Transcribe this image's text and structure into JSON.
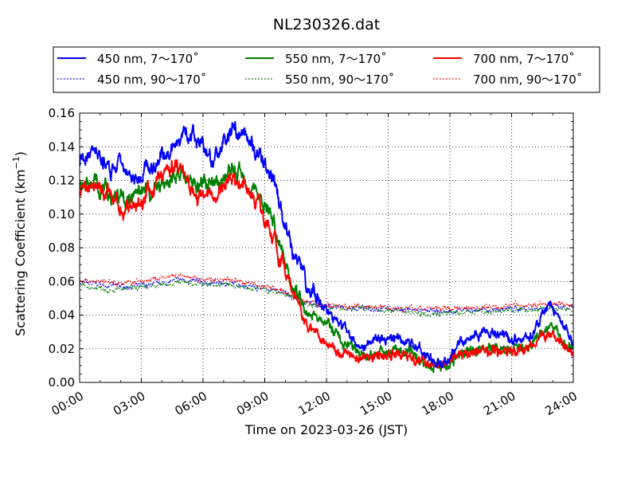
{
  "chart_data": {
    "type": "line",
    "title": "NL230326.dat",
    "xlabel": "Time on 2023-03-26 (JST)",
    "ylabel_main": "Scattering Coefficient (km",
    "ylabel_exp": "−1",
    "ylabel_close": ")",
    "x_unit": "hours",
    "xlim": [
      0,
      24
    ],
    "ylim": [
      0,
      0.16
    ],
    "x_ticks": [
      {
        "value": 0,
        "label": "00:00"
      },
      {
        "value": 3,
        "label": "03:00"
      },
      {
        "value": 6,
        "label": "06:00"
      },
      {
        "value": 9,
        "label": "09:00"
      },
      {
        "value": 12,
        "label": "12:00"
      },
      {
        "value": 15,
        "label": "15:00"
      },
      {
        "value": 18,
        "label": "18:00"
      },
      {
        "value": 21,
        "label": "21:00"
      },
      {
        "value": 24,
        "label": "24:00"
      }
    ],
    "y_ticks": [
      {
        "value": 0,
        "label": "0.00"
      },
      {
        "value": 0.02,
        "label": "0.02"
      },
      {
        "value": 0.04,
        "label": "0.04"
      },
      {
        "value": 0.06,
        "label": "0.06"
      },
      {
        "value": 0.08,
        "label": "0.08"
      },
      {
        "value": 0.1,
        "label": "0.10"
      },
      {
        "value": 0.12,
        "label": "0.12"
      },
      {
        "value": 0.14,
        "label": "0.14"
      },
      {
        "value": 0.16,
        "label": "0.16"
      }
    ],
    "grid": true,
    "legend_position": "top, above plot",
    "series": [
      {
        "name": "450 nm, 7～170˚",
        "color": "#0000ff",
        "style": "solid",
        "x": [
          0,
          0.5,
          1,
          1.5,
          2,
          2.5,
          3,
          3.5,
          4,
          4.5,
          5,
          5.5,
          6,
          6.5,
          7,
          7.5,
          8,
          8.5,
          9,
          9.5,
          10,
          10.5,
          11,
          11.5,
          12,
          12.5,
          13,
          13.5,
          14,
          14.5,
          15,
          15.5,
          16,
          16.5,
          17,
          17.5,
          18,
          18.5,
          19,
          19.5,
          20,
          20.5,
          21,
          21.5,
          22,
          22.5,
          23,
          23.5,
          24
        ],
        "y": [
          0.13,
          0.137,
          0.133,
          0.128,
          0.13,
          0.125,
          0.125,
          0.128,
          0.133,
          0.14,
          0.148,
          0.145,
          0.14,
          0.132,
          0.14,
          0.15,
          0.148,
          0.138,
          0.128,
          0.115,
          0.09,
          0.075,
          0.06,
          0.052,
          0.042,
          0.035,
          0.03,
          0.024,
          0.022,
          0.025,
          0.025,
          0.026,
          0.025,
          0.02,
          0.014,
          0.014,
          0.015,
          0.024,
          0.028,
          0.03,
          0.028,
          0.027,
          0.026,
          0.025,
          0.028,
          0.04,
          0.046,
          0.032,
          0.025
        ]
      },
      {
        "name": "450 nm, 90～170˚",
        "color": "#0000ff",
        "style": "dotted",
        "x": [
          0,
          1,
          2,
          3,
          4,
          5,
          6,
          7,
          8,
          9,
          10,
          10.5,
          11,
          11.5,
          12,
          13,
          14,
          15,
          16,
          17,
          18,
          19,
          20,
          21,
          22,
          23,
          24
        ],
        "y": [
          0.059,
          0.058,
          0.057,
          0.057,
          0.059,
          0.061,
          0.059,
          0.059,
          0.058,
          0.056,
          0.053,
          0.05,
          0.047,
          0.046,
          0.045,
          0.044,
          0.044,
          0.044,
          0.043,
          0.042,
          0.042,
          0.043,
          0.043,
          0.044,
          0.044,
          0.045,
          0.044
        ]
      },
      {
        "name": "550 nm, 7～170˚",
        "color": "#008000",
        "style": "solid",
        "x": [
          0,
          0.5,
          1,
          1.5,
          2,
          2.5,
          3,
          3.5,
          4,
          4.5,
          5,
          5.5,
          6,
          6.5,
          7,
          7.5,
          8,
          8.5,
          9,
          9.5,
          10,
          10.5,
          11,
          11.5,
          12,
          12.5,
          13,
          13.5,
          14,
          14.5,
          15,
          15.5,
          16,
          16.5,
          17,
          17.5,
          18,
          18.5,
          19,
          19.5,
          20,
          20.5,
          21,
          21.5,
          22,
          22.5,
          23,
          23.5,
          24
        ],
        "y": [
          0.115,
          0.12,
          0.117,
          0.112,
          0.11,
          0.108,
          0.11,
          0.112,
          0.118,
          0.122,
          0.125,
          0.12,
          0.117,
          0.115,
          0.122,
          0.126,
          0.123,
          0.115,
          0.106,
          0.093,
          0.07,
          0.056,
          0.042,
          0.038,
          0.036,
          0.028,
          0.022,
          0.018,
          0.016,
          0.017,
          0.018,
          0.019,
          0.017,
          0.013,
          0.01,
          0.01,
          0.011,
          0.016,
          0.019,
          0.021,
          0.02,
          0.02,
          0.02,
          0.021,
          0.023,
          0.03,
          0.033,
          0.024,
          0.02
        ]
      },
      {
        "name": "550 nm, 90～170˚",
        "color": "#008000",
        "style": "dotted",
        "x": [
          0,
          1,
          2,
          3,
          4,
          5,
          6,
          7,
          8,
          9,
          10,
          10.5,
          11,
          11.5,
          12,
          13,
          14,
          15,
          16,
          17,
          18,
          19,
          20,
          21,
          22,
          23,
          24
        ],
        "y": [
          0.057,
          0.056,
          0.055,
          0.056,
          0.058,
          0.06,
          0.058,
          0.058,
          0.057,
          0.055,
          0.052,
          0.05,
          0.047,
          0.046,
          0.045,
          0.044,
          0.044,
          0.043,
          0.042,
          0.041,
          0.041,
          0.042,
          0.042,
          0.043,
          0.043,
          0.044,
          0.043
        ]
      },
      {
        "name": "700 nm, 7～170˚",
        "color": "#ff0000",
        "style": "solid",
        "x": [
          0,
          0.5,
          1,
          1.5,
          2,
          2.5,
          3,
          3.5,
          4,
          4.5,
          5,
          5.5,
          6,
          6.5,
          7,
          7.5,
          8,
          8.5,
          9,
          9.5,
          10,
          10.5,
          11,
          11.5,
          12,
          12.5,
          13,
          13.5,
          14,
          14.5,
          15,
          15.5,
          16,
          16.5,
          17,
          17.5,
          18,
          18.5,
          19,
          19.5,
          20,
          20.5,
          21,
          21.5,
          22,
          22.5,
          23,
          23.5,
          24
        ],
        "y": [
          0.112,
          0.118,
          0.115,
          0.11,
          0.105,
          0.102,
          0.108,
          0.115,
          0.122,
          0.128,
          0.13,
          0.115,
          0.11,
          0.108,
          0.118,
          0.122,
          0.118,
          0.11,
          0.1,
          0.085,
          0.062,
          0.05,
          0.035,
          0.03,
          0.024,
          0.02,
          0.017,
          0.015,
          0.015,
          0.016,
          0.016,
          0.017,
          0.015,
          0.012,
          0.012,
          0.012,
          0.013,
          0.017,
          0.018,
          0.018,
          0.018,
          0.018,
          0.018,
          0.019,
          0.022,
          0.027,
          0.029,
          0.021,
          0.018
        ]
      },
      {
        "name": "700 nm, 90～170˚",
        "color": "#ff0000",
        "style": "dotted",
        "x": [
          0,
          1,
          2,
          3,
          4,
          5,
          6,
          7,
          8,
          9,
          10,
          10.5,
          11,
          11.5,
          12,
          13,
          14,
          15,
          16,
          17,
          18,
          19,
          20,
          21,
          22,
          23,
          24
        ],
        "y": [
          0.061,
          0.06,
          0.059,
          0.06,
          0.062,
          0.063,
          0.061,
          0.061,
          0.06,
          0.057,
          0.054,
          0.051,
          0.048,
          0.047,
          0.046,
          0.045,
          0.045,
          0.045,
          0.044,
          0.044,
          0.044,
          0.045,
          0.045,
          0.046,
          0.046,
          0.047,
          0.046
        ]
      }
    ]
  }
}
